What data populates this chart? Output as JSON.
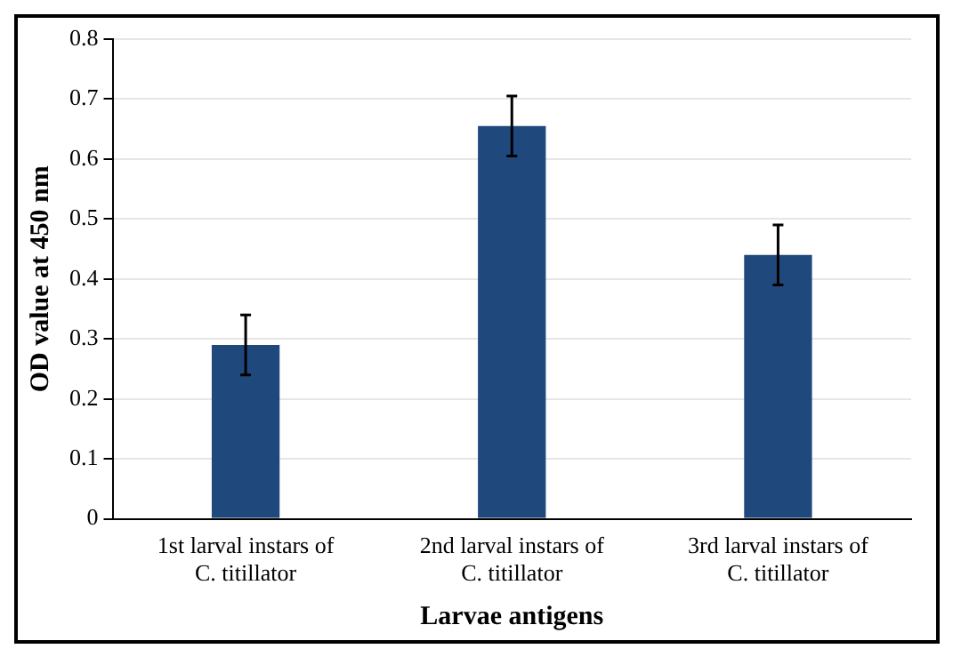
{
  "chart_data": {
    "type": "bar",
    "xlabel": "Larvae antigens",
    "ylabel": "OD value at 450 nm",
    "categories": [
      "1st larval instars of C. titillator",
      "2nd larval instars of C. titillator",
      "3rd larval instars of C. titillator"
    ],
    "values": [
      0.29,
      0.655,
      0.44
    ],
    "errors": [
      0.05,
      0.05,
      0.05
    ],
    "color": "#1f497d",
    "ylim": [
      0,
      0.8
    ],
    "yticks": [
      0,
      0.1,
      0.2,
      0.3,
      0.4,
      0.5,
      0.6,
      0.7,
      0.8
    ],
    "grid": "y"
  }
}
